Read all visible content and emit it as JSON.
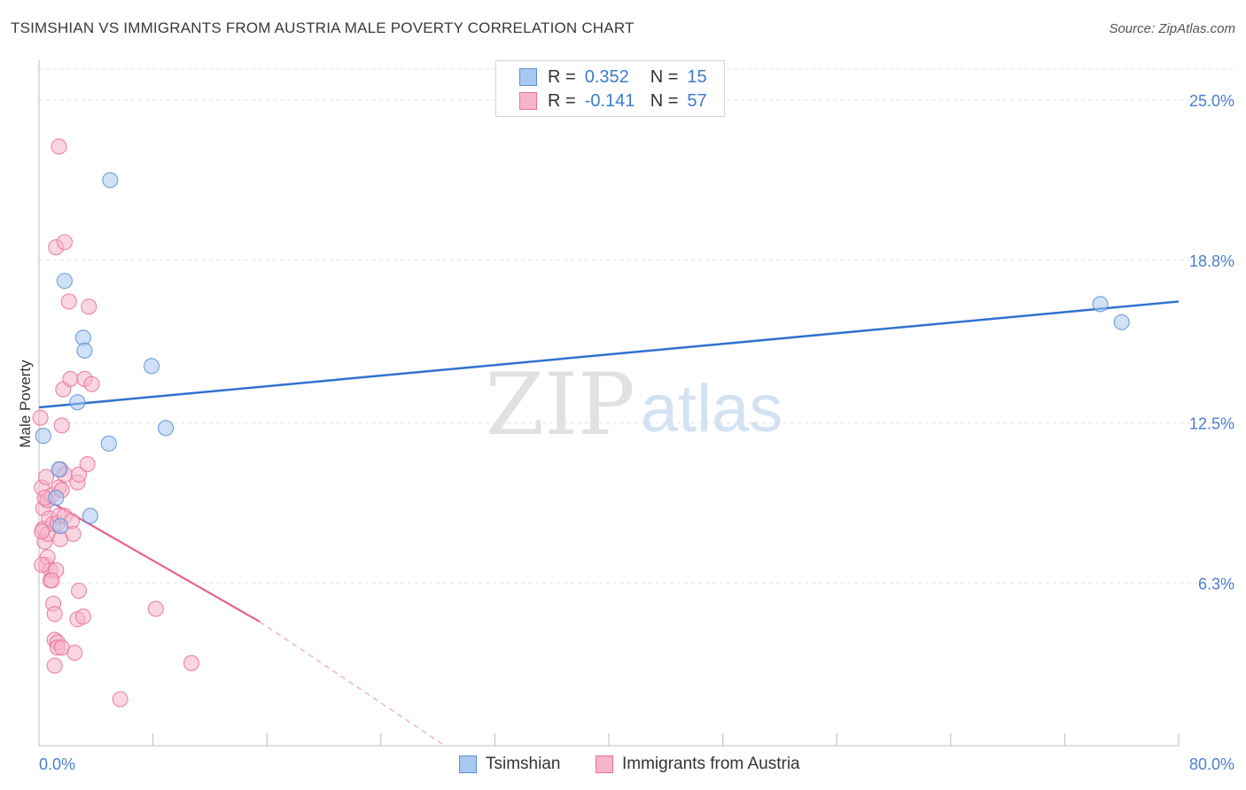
{
  "header": {
    "title": "TSIMSHIAN VS IMMIGRANTS FROM AUSTRIA MALE POVERTY CORRELATION CHART",
    "source": "Source: ZipAtlas.com"
  },
  "watermark": {
    "zip": "ZIP",
    "atlas": "atlas"
  },
  "legend": {
    "rows": [
      {
        "r_label": "R =",
        "r_value": "0.352",
        "n_label": "N =",
        "n_value": "15",
        "color": "#a9c8f0"
      },
      {
        "r_label": "R =",
        "r_value": "-0.141",
        "n_label": "N =",
        "n_value": "57",
        "color": "#f6b5cb"
      }
    ]
  },
  "chart_data": {
    "type": "scatter",
    "title": "TSIMSHIAN VS IMMIGRANTS FROM AUSTRIA MALE POVERTY CORRELATION CHART",
    "xlabel": "",
    "ylabel": "Male Poverty",
    "xlim": [
      0,
      80
    ],
    "ylim": [
      0,
      26.2
    ],
    "x_tick_labels": [
      "0.0%",
      "80.0%"
    ],
    "y_ticks": [
      6.3,
      12.5,
      18.8,
      25.0
    ],
    "y_tick_labels": [
      "6.3%",
      "12.5%",
      "18.8%",
      "25.0%"
    ],
    "grid": true,
    "legend_position": "top-center",
    "series": [
      {
        "name": "Tsimshian",
        "color": "#5b8fd6",
        "fill": "#a9c8f0",
        "points": [
          [
            0.3,
            12.0
          ],
          [
            1.2,
            9.6
          ],
          [
            1.5,
            8.5
          ],
          [
            1.4,
            10.7
          ],
          [
            1.8,
            18.0
          ],
          [
            2.7,
            13.3
          ],
          [
            3.1,
            15.8
          ],
          [
            3.2,
            15.3
          ],
          [
            3.6,
            8.9
          ],
          [
            5.0,
            21.9
          ],
          [
            4.9,
            11.7
          ],
          [
            7.9,
            14.7
          ],
          [
            8.9,
            12.3
          ],
          [
            74.5,
            17.1
          ],
          [
            76.0,
            16.4
          ]
        ],
        "trend": {
          "x": [
            0,
            80
          ],
          "y": [
            13.1,
            17.2
          ],
          "dashed_extension": false
        }
      },
      {
        "name": "Immigrants from Austria",
        "color": "#e8709b",
        "fill": "#f6b5cb",
        "points": [
          [
            0.1,
            12.7
          ],
          [
            0.2,
            10.0
          ],
          [
            0.3,
            9.2
          ],
          [
            0.3,
            8.4
          ],
          [
            0.4,
            7.9
          ],
          [
            0.5,
            10.4
          ],
          [
            0.5,
            7.0
          ],
          [
            0.6,
            8.2
          ],
          [
            0.6,
            7.3
          ],
          [
            0.6,
            9.5
          ],
          [
            0.7,
            8.8
          ],
          [
            0.8,
            6.8
          ],
          [
            0.8,
            6.4
          ],
          [
            0.9,
            9.7
          ],
          [
            1.0,
            5.5
          ],
          [
            1.0,
            8.6
          ],
          [
            1.1,
            4.1
          ],
          [
            1.1,
            5.1
          ],
          [
            1.1,
            3.1
          ],
          [
            1.2,
            6.8
          ],
          [
            1.3,
            4.0
          ],
          [
            1.3,
            3.8
          ],
          [
            1.3,
            8.6
          ],
          [
            1.4,
            8.9
          ],
          [
            1.4,
            10.0
          ],
          [
            1.5,
            10.7
          ],
          [
            1.5,
            8.0
          ],
          [
            1.6,
            9.9
          ],
          [
            1.6,
            3.8
          ],
          [
            1.6,
            12.4
          ],
          [
            1.7,
            13.8
          ],
          [
            1.8,
            10.5
          ],
          [
            1.8,
            8.9
          ],
          [
            2.1,
            17.2
          ],
          [
            2.2,
            14.2
          ],
          [
            2.3,
            8.7
          ],
          [
            2.4,
            8.2
          ],
          [
            2.5,
            3.6
          ],
          [
            2.7,
            4.9
          ],
          [
            2.7,
            10.2
          ],
          [
            2.8,
            10.5
          ],
          [
            2.8,
            6.0
          ],
          [
            1.2,
            19.3
          ],
          [
            1.4,
            23.2
          ],
          [
            1.8,
            19.5
          ],
          [
            3.1,
            5.0
          ],
          [
            3.2,
            14.2
          ],
          [
            3.4,
            10.9
          ],
          [
            3.5,
            17.0
          ],
          [
            3.7,
            14.0
          ],
          [
            5.7,
            1.8
          ],
          [
            8.2,
            5.3
          ],
          [
            10.7,
            3.2
          ],
          [
            0.2,
            7.0
          ],
          [
            0.2,
            8.3
          ],
          [
            0.4,
            9.6
          ],
          [
            0.9,
            6.4
          ]
        ],
        "trend": {
          "x": [
            0,
            15.5
          ],
          "y": [
            9.7,
            4.8
          ],
          "dashed_to": [
            28.5,
            0.0
          ]
        }
      }
    ]
  },
  "bottom_legend": {
    "items": [
      {
        "label": "Tsimshian",
        "color": "#a9c8f0",
        "border": "#5b8fd6"
      },
      {
        "label": "Immigrants from Austria",
        "color": "#f6b5cb",
        "border": "#e8709b"
      }
    ]
  }
}
